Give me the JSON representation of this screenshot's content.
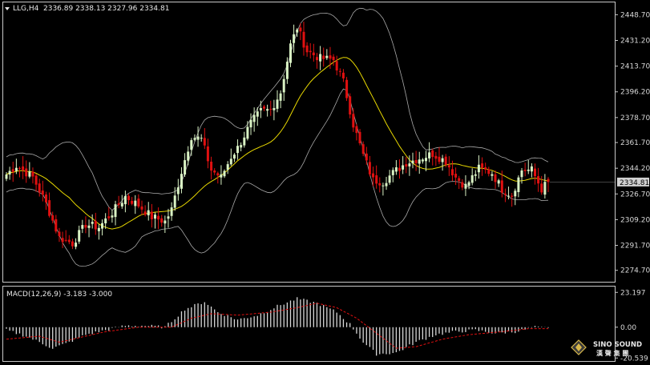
{
  "header": {
    "symbol": "LLG,H4",
    "ohlc": "2336.89 2338.13 2327.96 2334.81",
    "menu_icon": "triangle-down-icon"
  },
  "macd_header": "MACD(12,26,9) -3.183 -3.000",
  "logo": {
    "name": "SINO SOUND",
    "sub": "漢 聲 集 團",
    "icon": "diamond-logo-icon"
  },
  "colors": {
    "background": "#000000",
    "bull_candle": "#d9f2c4",
    "bear_candle": "#e01010",
    "ma_line": "#e8d800",
    "bollinger": "#a8a8a8",
    "macd_hist": "#d8d8d8",
    "macd_signal": "#e01010",
    "price_badge": "#d0d0d0"
  },
  "chart_data": [
    {
      "type": "candlestick",
      "title": "",
      "symbol": "LLG",
      "timeframe": "H4",
      "ylim": [
        2268,
        2456
      ],
      "yticks": [
        "2448.70",
        "2431.20",
        "2413.70",
        "2396.20",
        "2378.70",
        "2361.70",
        "2344.20",
        "2326.70",
        "2309.20",
        "2291.70",
        "2274.70"
      ],
      "current_price": "2334.81",
      "last_bar": {
        "open": 2336.89,
        "high": 2338.13,
        "low": 2327.96,
        "close": 2334.81
      },
      "grid": false,
      "overlays": [
        "bollinger_bands",
        "moving_average"
      ],
      "anchors_close": [
        [
          0,
          2340
        ],
        [
          3,
          2346
        ],
        [
          8,
          2338
        ],
        [
          12,
          2320
        ],
        [
          16,
          2297
        ],
        [
          20,
          2293
        ],
        [
          24,
          2306
        ],
        [
          28,
          2304
        ],
        [
          32,
          2314
        ],
        [
          36,
          2325
        ],
        [
          40,
          2319
        ],
        [
          44,
          2311
        ],
        [
          48,
          2308
        ],
        [
          50,
          2316
        ],
        [
          53,
          2342
        ],
        [
          56,
          2366
        ],
        [
          59,
          2364
        ],
        [
          62,
          2343
        ],
        [
          65,
          2338
        ],
        [
          68,
          2352
        ],
        [
          70,
          2358
        ],
        [
          74,
          2375
        ],
        [
          77,
          2383
        ],
        [
          80,
          2384
        ],
        [
          83,
          2396
        ],
        [
          86,
          2428
        ],
        [
          88,
          2440
        ],
        [
          91,
          2424
        ],
        [
          95,
          2419
        ],
        [
          99,
          2418
        ],
        [
          102,
          2403
        ],
        [
          105,
          2374
        ],
        [
          108,
          2353
        ],
        [
          111,
          2336
        ],
        [
          114,
          2335
        ],
        [
          117,
          2341
        ],
        [
          121,
          2348
        ],
        [
          125,
          2351
        ],
        [
          129,
          2354
        ],
        [
          133,
          2349
        ],
        [
          136,
          2338
        ],
        [
          139,
          2332
        ],
        [
          143,
          2344
        ],
        [
          147,
          2341
        ],
        [
          150,
          2330
        ],
        [
          153,
          2326
        ],
        [
          156,
          2343
        ],
        [
          159,
          2343
        ],
        [
          162,
          2330
        ],
        [
          164,
          2335
        ]
      ]
    },
    {
      "type": "bar",
      "title": "MACD(12,26,9)",
      "values_label": "-3.183 -3.000",
      "ylim": [
        -22,
        26
      ],
      "yticks": [
        "23.197",
        "0.00",
        "-20.539"
      ],
      "anchors_hist": [
        [
          0,
          -2
        ],
        [
          6,
          -6
        ],
        [
          10,
          -10
        ],
        [
          14,
          -14
        ],
        [
          18,
          -11
        ],
        [
          24,
          -5
        ],
        [
          30,
          -2
        ],
        [
          36,
          1
        ],
        [
          42,
          1
        ],
        [
          48,
          0
        ],
        [
          54,
          12
        ],
        [
          60,
          17
        ],
        [
          64,
          10
        ],
        [
          70,
          5
        ],
        [
          76,
          8
        ],
        [
          82,
          14
        ],
        [
          88,
          19
        ],
        [
          94,
          16
        ],
        [
          100,
          10
        ],
        [
          104,
          2
        ],
        [
          108,
          -10
        ],
        [
          112,
          -18
        ],
        [
          118,
          -17
        ],
        [
          124,
          -10
        ],
        [
          130,
          -5
        ],
        [
          136,
          -3
        ],
        [
          142,
          -2
        ],
        [
          148,
          -4
        ],
        [
          154,
          -3
        ],
        [
          160,
          0
        ],
        [
          164,
          -1
        ]
      ],
      "anchors_signal": [
        [
          0,
          -8
        ],
        [
          10,
          -6
        ],
        [
          16,
          -10
        ],
        [
          22,
          -7
        ],
        [
          30,
          -3
        ],
        [
          40,
          0
        ],
        [
          50,
          0
        ],
        [
          56,
          6
        ],
        [
          62,
          9
        ],
        [
          70,
          8
        ],
        [
          80,
          10
        ],
        [
          88,
          13
        ],
        [
          94,
          16
        ],
        [
          100,
          13
        ],
        [
          106,
          6
        ],
        [
          112,
          -4
        ],
        [
          118,
          -14
        ],
        [
          124,
          -13
        ],
        [
          132,
          -8
        ],
        [
          140,
          -5
        ],
        [
          150,
          -3
        ],
        [
          158,
          -1
        ],
        [
          164,
          -1
        ]
      ]
    }
  ]
}
